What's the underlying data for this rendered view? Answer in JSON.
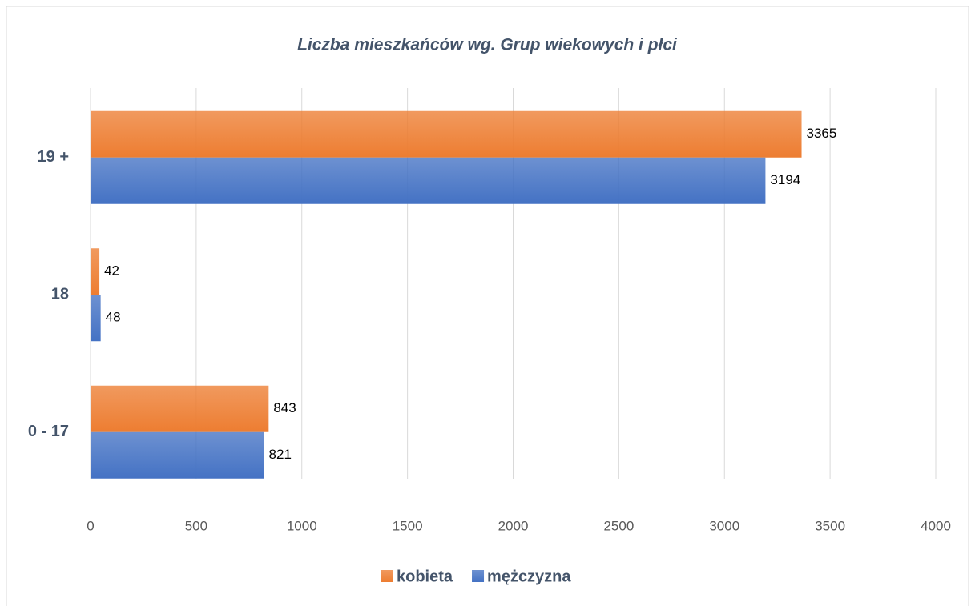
{
  "chart_data": {
    "type": "hbar",
    "title": "Liczba mieszkańców wg. Grup wiekowych i płci",
    "categories": [
      "0 - 17",
      "18",
      "19 +"
    ],
    "series": [
      {
        "name": "kobieta",
        "color": "#ed7d31",
        "values": [
          843,
          42,
          3365
        ]
      },
      {
        "name": "mężczyzna",
        "color": "#4472c4",
        "values": [
          821,
          48,
          3194
        ]
      }
    ],
    "xlim": [
      0,
      4000
    ],
    "xticks": [
      0,
      500,
      1000,
      1500,
      2000,
      2500,
      3000,
      3500,
      4000
    ],
    "grid": true,
    "legend": "bottom"
  }
}
